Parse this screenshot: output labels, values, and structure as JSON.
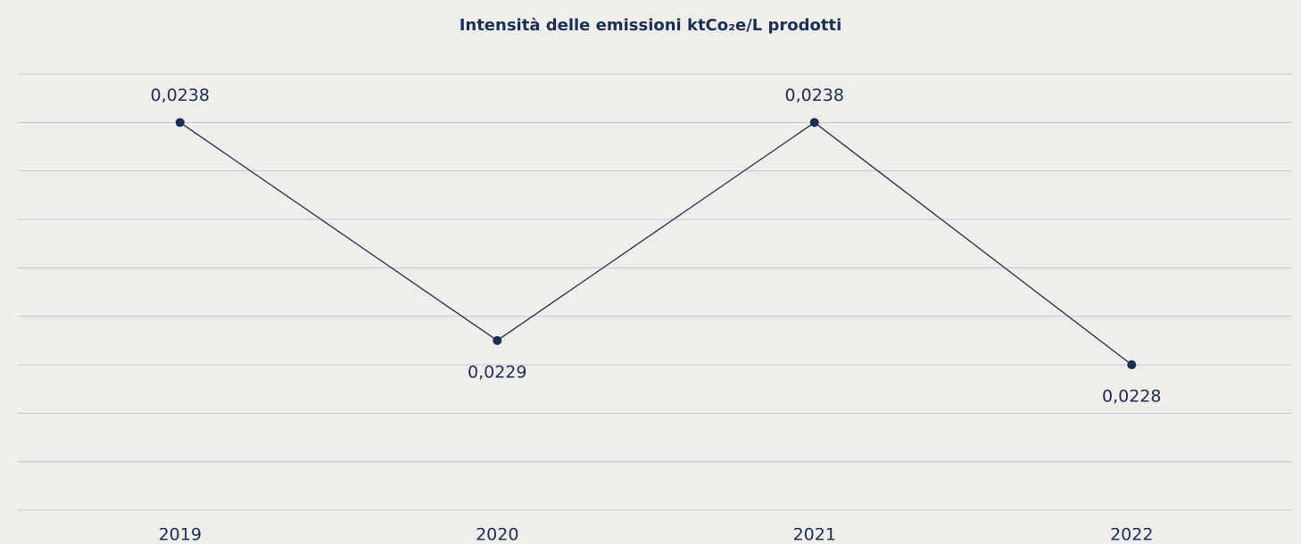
{
  "chart_data": {
    "type": "line",
    "title": "Intensità delle emissioni ktCo₂e/L prodotti",
    "categories": [
      "2019",
      "2020",
      "2021",
      "2022"
    ],
    "values": [
      0.0238,
      0.0229,
      0.0238,
      0.0228
    ],
    "value_labels": [
      "0,0238",
      "0,0229",
      "0,0238",
      "0,0228"
    ],
    "color": "#1b2f55",
    "ylim": [
      0.0222,
      0.024
    ],
    "yticks": [
      0.0222,
      0.0224,
      0.0226,
      0.0228,
      0.023,
      0.0232,
      0.0234,
      0.0236,
      0.0238,
      0.024
    ],
    "grid": true
  }
}
